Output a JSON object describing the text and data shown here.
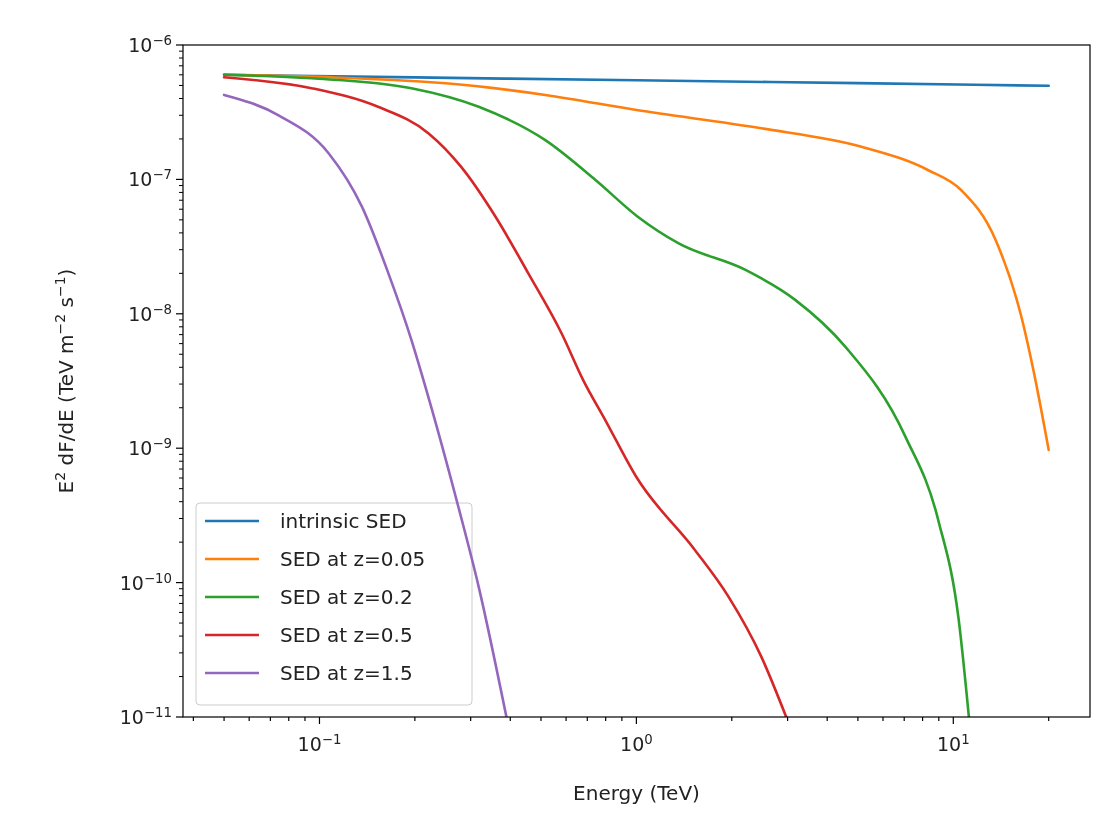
{
  "chart_data": {
    "type": "line",
    "xlabel": "Energy (TeV)",
    "ylabel": "E$^{2}$ dF/dE (TeV m$^{−2}$ s$^{−1}$)",
    "log": "xy",
    "legend": "bottom left",
    "xlim": [
      0.0371,
      27.0
    ],
    "ylim": [
      1e-11,
      1e-06
    ],
    "xticks": [
      {
        "value": 0.04,
        "label": null
      },
      {
        "value": 0.05,
        "label": null
      },
      {
        "value": 0.06,
        "label": null
      },
      {
        "value": 0.07,
        "label": null
      },
      {
        "value": 0.08,
        "label": null
      },
      {
        "value": 0.09,
        "label": null
      },
      {
        "value": 0.1,
        "label": "10$^{−1}$"
      },
      {
        "value": 0.2,
        "label": null
      },
      {
        "value": 0.3,
        "label": null
      },
      {
        "value": 0.4,
        "label": null
      },
      {
        "value": 0.5,
        "label": null
      },
      {
        "value": 0.6,
        "label": null
      },
      {
        "value": 0.7,
        "label": null
      },
      {
        "value": 0.8,
        "label": null
      },
      {
        "value": 0.9,
        "label": null
      },
      {
        "value": 1,
        "label": "10$^{0}$"
      },
      {
        "value": 2,
        "label": null
      },
      {
        "value": 3,
        "label": null
      },
      {
        "value": 4,
        "label": null
      },
      {
        "value": 5,
        "label": null
      },
      {
        "value": 6,
        "label": null
      },
      {
        "value": 7,
        "label": null
      },
      {
        "value": 8,
        "label": null
      },
      {
        "value": 9,
        "label": null
      },
      {
        "value": 10,
        "label": "10$^{1}$"
      },
      {
        "value": 20,
        "label": null
      }
    ],
    "yticks": [
      {
        "value": 1e-11,
        "label": "10$^{−11}$"
      },
      {
        "value": 1e-10,
        "label": "10$^{−10}$"
      },
      {
        "value": 1e-09,
        "label": "10$^{−9}$"
      },
      {
        "value": 1e-08,
        "label": "10$^{−8}$"
      },
      {
        "value": 1e-07,
        "label": "10$^{−7}$"
      },
      {
        "value": 1e-06,
        "label": "10$^{−6}$"
      }
    ],
    "series": [
      {
        "name": "intrinsic SED",
        "color": "#1f77b4",
        "x": [
          0.05,
          0.2,
          1,
          5,
          20
        ],
        "values": [
          6e-07,
          5.74e-07,
          5.46e-07,
          5.2e-07,
          4.97e-07
        ]
      },
      {
        "name": "SED at z=0.05",
        "color": "#ff7f0e",
        "x": [
          0.05,
          0.25,
          0.516,
          1.0,
          2.48,
          5.13,
          8.34,
          10.6,
          13.6,
          16.4,
          17.9,
          20
        ],
        "values": [
          6e-07,
          5.19e-07,
          4.25e-07,
          3.28e-07,
          2.4e-07,
          1.75e-07,
          1.17e-07,
          8.3e-08,
          3.54e-08,
          9.5e-09,
          3.8e-09,
          9.7e-10
        ]
      },
      {
        "name": "SED at z=0.2",
        "color": "#2ca02c",
        "x": [
          0.05,
          0.0944,
          0.195,
          0.318,
          0.516,
          0.743,
          1.01,
          1.36,
          2.21,
          3.17,
          4.56,
          7.06,
          8.97,
          10.4,
          11.2
        ],
        "values": [
          6e-07,
          5.65e-07,
          4.77e-07,
          3.47e-07,
          1.96e-07,
          9.9e-08,
          5.28e-08,
          3.34e-08,
          2.12e-08,
          1.27e-08,
          5.7e-09,
          1.22e-09,
          2.9e-10,
          5.3e-11,
          1e-11
        ]
      },
      {
        "name": "SED at z=0.5",
        "color": "#d62728",
        "x": [
          0.05,
          0.0944,
          0.153,
          0.221,
          0.28,
          0.359,
          0.456,
          0.58,
          0.68,
          0.8,
          1.0,
          1.53,
          1.95,
          2.48,
          2.97
        ],
        "values": [
          5.75e-07,
          4.77e-07,
          3.47e-07,
          2.2e-07,
          1.24e-07,
          5.3e-08,
          2e-08,
          7.2e-09,
          3.2e-09,
          1.6e-09,
          6.1e-10,
          1.75e-10,
          7.9e-11,
          2.8e-11,
          1e-11
        ]
      },
      {
        "name": "SED at z=1.5",
        "color": "#9467bd",
        "x": [
          0.05,
          0.0743,
          0.107,
          0.136,
          0.165,
          0.195,
          0.213,
          0.274,
          0.318,
          0.389
        ],
        "values": [
          4.25e-07,
          3e-07,
          1.56e-07,
          6.3e-08,
          2e-08,
          6.4e-09,
          3.2e-09,
          3.7e-10,
          9.3e-11,
          1e-11
        ]
      }
    ]
  }
}
